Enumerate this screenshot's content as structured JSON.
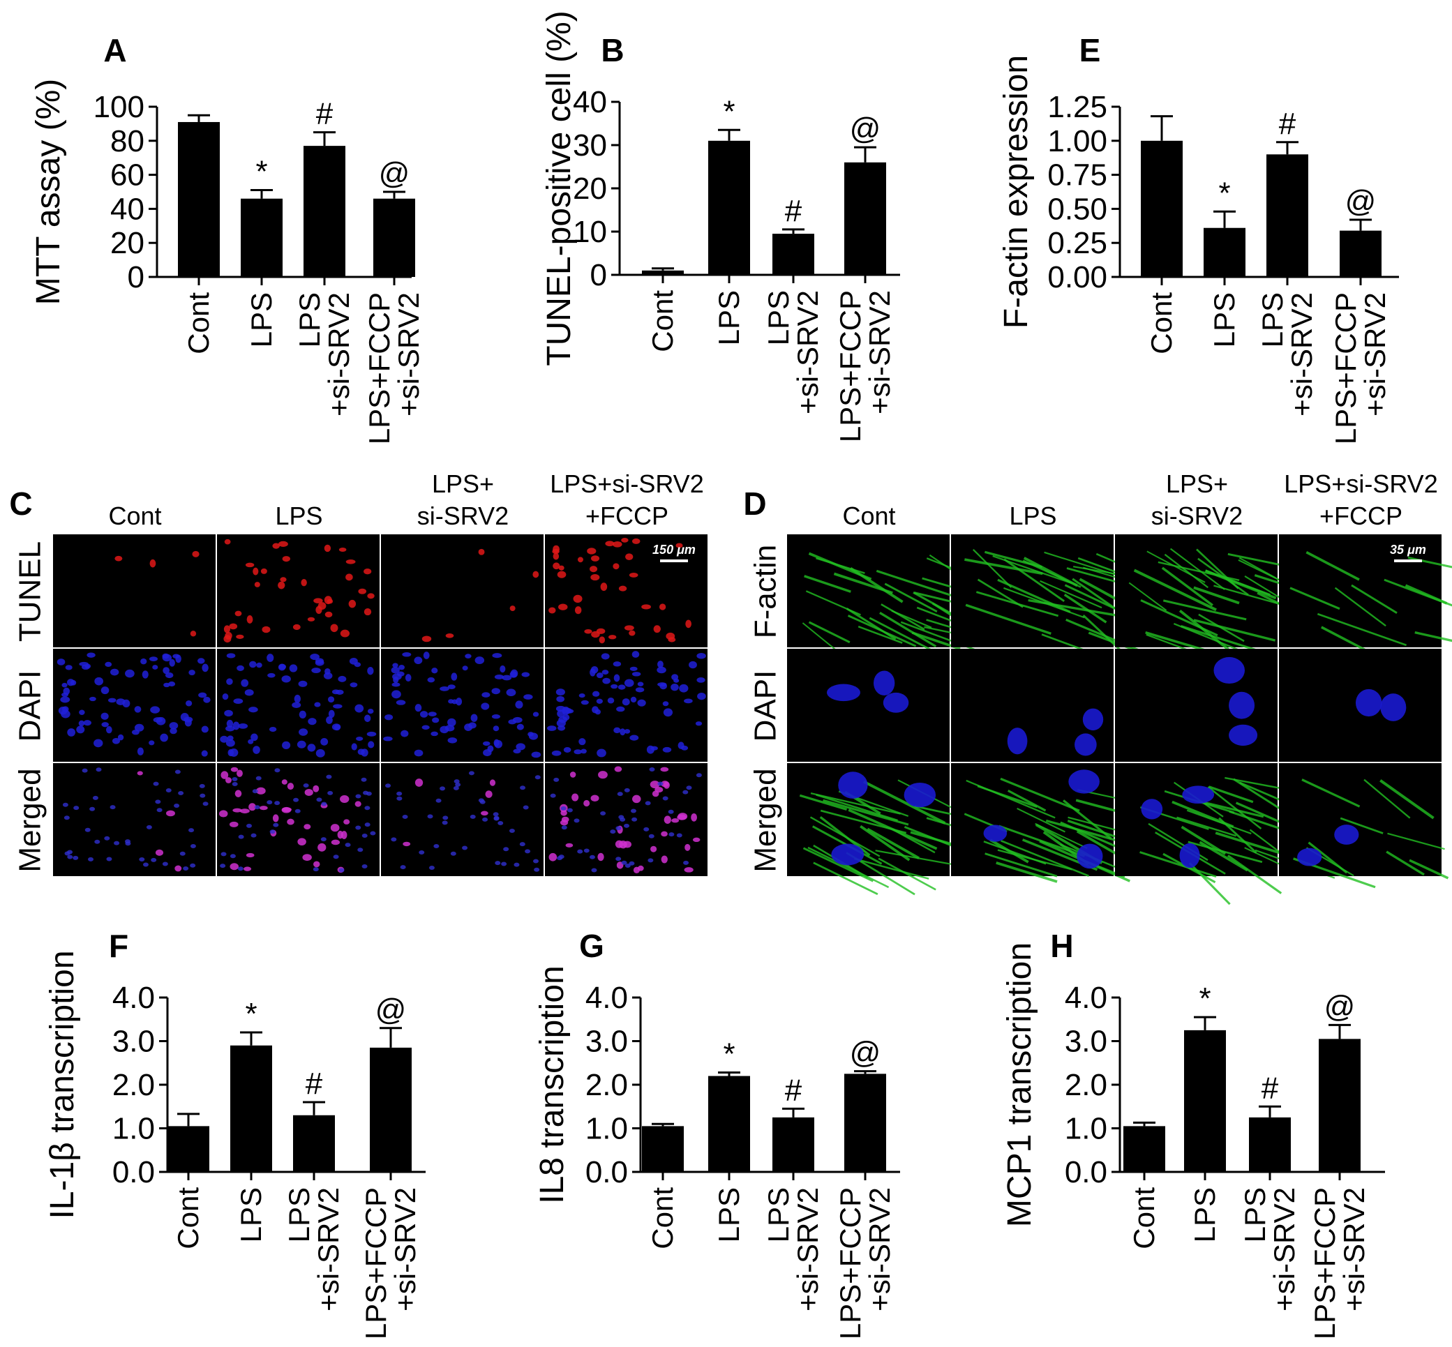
{
  "chart_data": [
    {
      "id": "A",
      "letter": "A",
      "type": "bar",
      "ylabel": "MTT assay (%)",
      "ylim": [
        0,
        100
      ],
      "yticks": [
        "0",
        "20",
        "40",
        "60",
        "80",
        "100"
      ],
      "categories": [
        [
          "Cont"
        ],
        [
          "LPS"
        ],
        [
          "LPS",
          "+si-SRV2"
        ],
        [
          "LPS+FCCP",
          "+si-SRV2"
        ]
      ],
      "values": [
        91,
        46,
        77,
        46
      ],
      "errors": [
        4,
        5,
        8,
        4
      ],
      "marks": [
        "",
        "*",
        "#",
        "@"
      ]
    },
    {
      "id": "B",
      "letter": "B",
      "type": "bar",
      "ylabel": "TUNEL-positive cell (%)",
      "ylim": [
        0,
        40
      ],
      "yticks": [
        "0",
        "10",
        "20",
        "30",
        "40"
      ],
      "categories": [
        [
          "Cont"
        ],
        [
          "LPS"
        ],
        [
          "LPS",
          "+si-SRV2"
        ],
        [
          "LPS+FCCP",
          "+si-SRV2"
        ]
      ],
      "values": [
        1,
        31,
        9.5,
        26
      ],
      "errors": [
        0.5,
        2.5,
        1,
        3.5
      ],
      "marks": [
        "",
        "*",
        "#",
        "@"
      ]
    },
    {
      "id": "E",
      "letter": "E",
      "type": "bar",
      "ylabel": "F-actin expression",
      "ylim": [
        0,
        1.25
      ],
      "yticks": [
        "0.00",
        "0.25",
        "0.50",
        "0.75",
        "1.00",
        "1.25"
      ],
      "categories": [
        [
          "Cont"
        ],
        [
          "LPS"
        ],
        [
          "LPS",
          "+si-SRV2"
        ],
        [
          "LPS+FCCP",
          "+si-SRV2"
        ]
      ],
      "values": [
        1.0,
        0.36,
        0.9,
        0.34
      ],
      "errors": [
        0.18,
        0.12,
        0.09,
        0.08
      ],
      "marks": [
        "",
        "*",
        "#",
        "@"
      ]
    },
    {
      "id": "F",
      "letter": "F",
      "type": "bar",
      "ylabel": "IL-1β transcription",
      "ylim": [
        0,
        4
      ],
      "yticks": [
        "0.0",
        "1.0",
        "2.0",
        "3.0",
        "4.0"
      ],
      "categories": [
        [
          "Cont"
        ],
        [
          "LPS"
        ],
        [
          "LPS",
          "+si-SRV2"
        ],
        [
          "LPS+FCCP",
          "+si-SRV2"
        ]
      ],
      "values": [
        1.05,
        2.9,
        1.3,
        2.85
      ],
      "errors": [
        0.28,
        0.3,
        0.3,
        0.45
      ],
      "marks": [
        "",
        "*",
        "#",
        "@"
      ]
    },
    {
      "id": "G",
      "letter": "G",
      "type": "bar",
      "ylabel": "IL8 transcription",
      "ylim": [
        0,
        4
      ],
      "yticks": [
        "0.0",
        "1.0",
        "2.0",
        "3.0",
        "4.0"
      ],
      "categories": [
        [
          "Cont"
        ],
        [
          "LPS"
        ],
        [
          "LPS",
          "+si-SRV2"
        ],
        [
          "LPS+FCCP",
          "+si-SRV2"
        ]
      ],
      "values": [
        1.05,
        2.2,
        1.25,
        2.25
      ],
      "errors": [
        0.05,
        0.08,
        0.2,
        0.06
      ],
      "marks": [
        "",
        "*",
        "#",
        "@"
      ]
    },
    {
      "id": "H",
      "letter": "H",
      "type": "bar",
      "ylabel": "MCP1 transcription",
      "ylim": [
        0,
        4
      ],
      "yticks": [
        "0.0",
        "1.0",
        "2.0",
        "3.0",
        "4.0"
      ],
      "categories": [
        [
          "Cont"
        ],
        [
          "LPS"
        ],
        [
          "LPS",
          "+si-SRV2"
        ],
        [
          "LPS+FCCP",
          "+si-SRV2"
        ]
      ],
      "values": [
        1.05,
        3.25,
        1.25,
        3.05
      ],
      "errors": [
        0.08,
        0.3,
        0.25,
        0.32
      ],
      "marks": [
        "",
        "*",
        "#",
        "@"
      ]
    }
  ],
  "micrographs": [
    {
      "id": "C",
      "letter": "C",
      "columns": [
        [
          "Cont"
        ],
        [
          "LPS"
        ],
        [
          "LPS+",
          "si-SRV2"
        ],
        [
          "LPS+si-SRV2",
          "+FCCP"
        ]
      ],
      "rows": [
        "TUNEL",
        "DAPI",
        "Merged"
      ],
      "scale_bar": "150 μm",
      "stain_colors": {
        "TUNEL": "#e01818",
        "DAPI": "#2020d8",
        "Merged": "#d030d0"
      }
    },
    {
      "id": "D",
      "letter": "D",
      "columns": [
        [
          "Cont"
        ],
        [
          "LPS"
        ],
        [
          "LPS+",
          "si-SRV2"
        ],
        [
          "LPS+si-SRV2",
          "+FCCP"
        ]
      ],
      "rows": [
        "F-actin",
        "DAPI",
        "Merged"
      ],
      "scale_bar": "35 μm",
      "stain_colors": {
        "F-actin": "#22c022",
        "DAPI": "#2828e0"
      }
    }
  ]
}
